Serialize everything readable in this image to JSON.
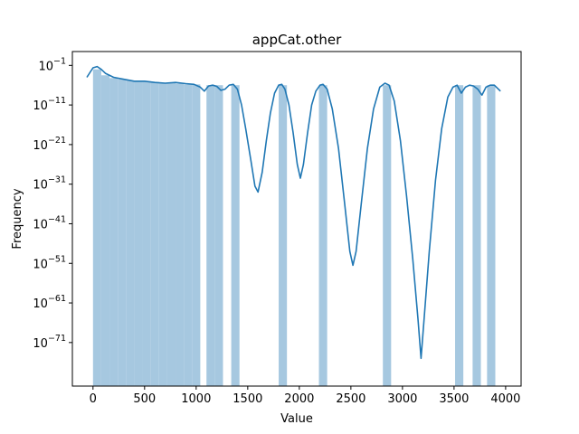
{
  "chart_data": {
    "type": "bar",
    "title": "appCat.other",
    "xlabel": "Value",
    "ylabel": "Frequency",
    "xlim": [
      -200,
      4150
    ],
    "ylim_log10": [
      -82,
      2.5
    ],
    "yscale": "log",
    "x_ticks": [
      0,
      500,
      1000,
      1500,
      2000,
      2500,
      3000,
      3500,
      4000
    ],
    "y_ticks": [
      {
        "exp": -1,
        "label_base": "10",
        "label_exp": "−1"
      },
      {
        "exp": -11,
        "label_base": "10",
        "label_exp": "−11"
      },
      {
        "exp": -21,
        "label_base": "10",
        "label_exp": "−21"
      },
      {
        "exp": -31,
        "label_base": "10",
        "label_exp": "−31"
      },
      {
        "exp": -41,
        "label_base": "10",
        "label_exp": "−41"
      },
      {
        "exp": -51,
        "label_base": "10",
        "label_exp": "−51"
      },
      {
        "exp": -61,
        "label_base": "10",
        "label_exp": "−61"
      },
      {
        "exp": -71,
        "label_base": "10",
        "label_exp": "−71"
      }
    ],
    "bar_color": "#a6c8e0",
    "line_color": "#1f77b4",
    "histogram": {
      "bin_width": 80,
      "bars": [
        {
          "x0": 0,
          "log10_y": -2.0
        },
        {
          "x0": 80,
          "log10_y": -3.5
        },
        {
          "x0": 160,
          "log10_y": -4.2
        },
        {
          "x0": 240,
          "log10_y": -4.5
        },
        {
          "x0": 320,
          "log10_y": -4.8
        },
        {
          "x0": 400,
          "log10_y": -5.0
        },
        {
          "x0": 480,
          "log10_y": -5.0
        },
        {
          "x0": 560,
          "log10_y": -5.2
        },
        {
          "x0": 640,
          "log10_y": -5.5
        },
        {
          "x0": 720,
          "log10_y": -5.5
        },
        {
          "x0": 800,
          "log10_y": -5.6
        },
        {
          "x0": 880,
          "log10_y": -5.8
        },
        {
          "x0": 960,
          "log10_y": -5.8
        },
        {
          "x0": 1100,
          "log10_y": -6.0
        },
        {
          "x0": 1180,
          "log10_y": -6.0
        },
        {
          "x0": 1340,
          "log10_y": -6.0
        },
        {
          "x0": 1800,
          "log10_y": -6.0
        },
        {
          "x0": 2190,
          "log10_y": -6.0
        },
        {
          "x0": 2810,
          "log10_y": -6.0
        },
        {
          "x0": 3510,
          "log10_y": -6.0
        },
        {
          "x0": 3680,
          "log10_y": -6.0
        },
        {
          "x0": 3820,
          "log10_y": -6.0
        }
      ]
    },
    "kde_series": {
      "name": "",
      "points": [
        [
          -60,
          -4.0
        ],
        [
          0,
          -1.6
        ],
        [
          40,
          -1.3
        ],
        [
          80,
          -2.0
        ],
        [
          120,
          -3.0
        ],
        [
          200,
          -4.0
        ],
        [
          300,
          -4.5
        ],
        [
          400,
          -5.0
        ],
        [
          500,
          -5.0
        ],
        [
          600,
          -5.3
        ],
        [
          700,
          -5.5
        ],
        [
          800,
          -5.3
        ],
        [
          900,
          -5.6
        ],
        [
          980,
          -5.8
        ],
        [
          1040,
          -6.5
        ],
        [
          1080,
          -7.5
        ],
        [
          1120,
          -6.2
        ],
        [
          1160,
          -6.0
        ],
        [
          1200,
          -6.3
        ],
        [
          1240,
          -7.3
        ],
        [
          1280,
          -7.0
        ],
        [
          1320,
          -6.0
        ],
        [
          1360,
          -5.8
        ],
        [
          1400,
          -7.0
        ],
        [
          1440,
          -11.0
        ],
        [
          1480,
          -17.0
        ],
        [
          1530,
          -25.0
        ],
        [
          1570,
          -31.5
        ],
        [
          1600,
          -33.0
        ],
        [
          1640,
          -28.0
        ],
        [
          1680,
          -20.0
        ],
        [
          1720,
          -13.0
        ],
        [
          1760,
          -8.0
        ],
        [
          1800,
          -6.0
        ],
        [
          1830,
          -5.8
        ],
        [
          1860,
          -7.0
        ],
        [
          1900,
          -11.0
        ],
        [
          1940,
          -18.0
        ],
        [
          1980,
          -26.0
        ],
        [
          2010,
          -29.5
        ],
        [
          2040,
          -26.0
        ],
        [
          2080,
          -18.0
        ],
        [
          2120,
          -11.0
        ],
        [
          2160,
          -7.5
        ],
        [
          2200,
          -6.0
        ],
        [
          2230,
          -5.8
        ],
        [
          2270,
          -7.0
        ],
        [
          2320,
          -12.0
        ],
        [
          2380,
          -22.0
        ],
        [
          2440,
          -36.0
        ],
        [
          2490,
          -48.0
        ],
        [
          2520,
          -51.5
        ],
        [
          2550,
          -48.0
        ],
        [
          2600,
          -36.0
        ],
        [
          2660,
          -22.0
        ],
        [
          2720,
          -12.0
        ],
        [
          2780,
          -6.5
        ],
        [
          2830,
          -5.5
        ],
        [
          2870,
          -6.0
        ],
        [
          2920,
          -10.0
        ],
        [
          2980,
          -20.0
        ],
        [
          3040,
          -34.0
        ],
        [
          3100,
          -50.0
        ],
        [
          3150,
          -65.0
        ],
        [
          3180,
          -75.0
        ],
        [
          3210,
          -65.0
        ],
        [
          3260,
          -48.0
        ],
        [
          3320,
          -30.0
        ],
        [
          3380,
          -17.0
        ],
        [
          3440,
          -9.0
        ],
        [
          3490,
          -6.5
        ],
        [
          3530,
          -6.0
        ],
        [
          3570,
          -8.0
        ],
        [
          3610,
          -6.5
        ],
        [
          3650,
          -6.0
        ],
        [
          3690,
          -6.2
        ],
        [
          3730,
          -7.0
        ],
        [
          3770,
          -8.5
        ],
        [
          3810,
          -6.5
        ],
        [
          3850,
          -6.0
        ],
        [
          3890,
          -6.0
        ],
        [
          3950,
          -7.5
        ]
      ]
    }
  }
}
